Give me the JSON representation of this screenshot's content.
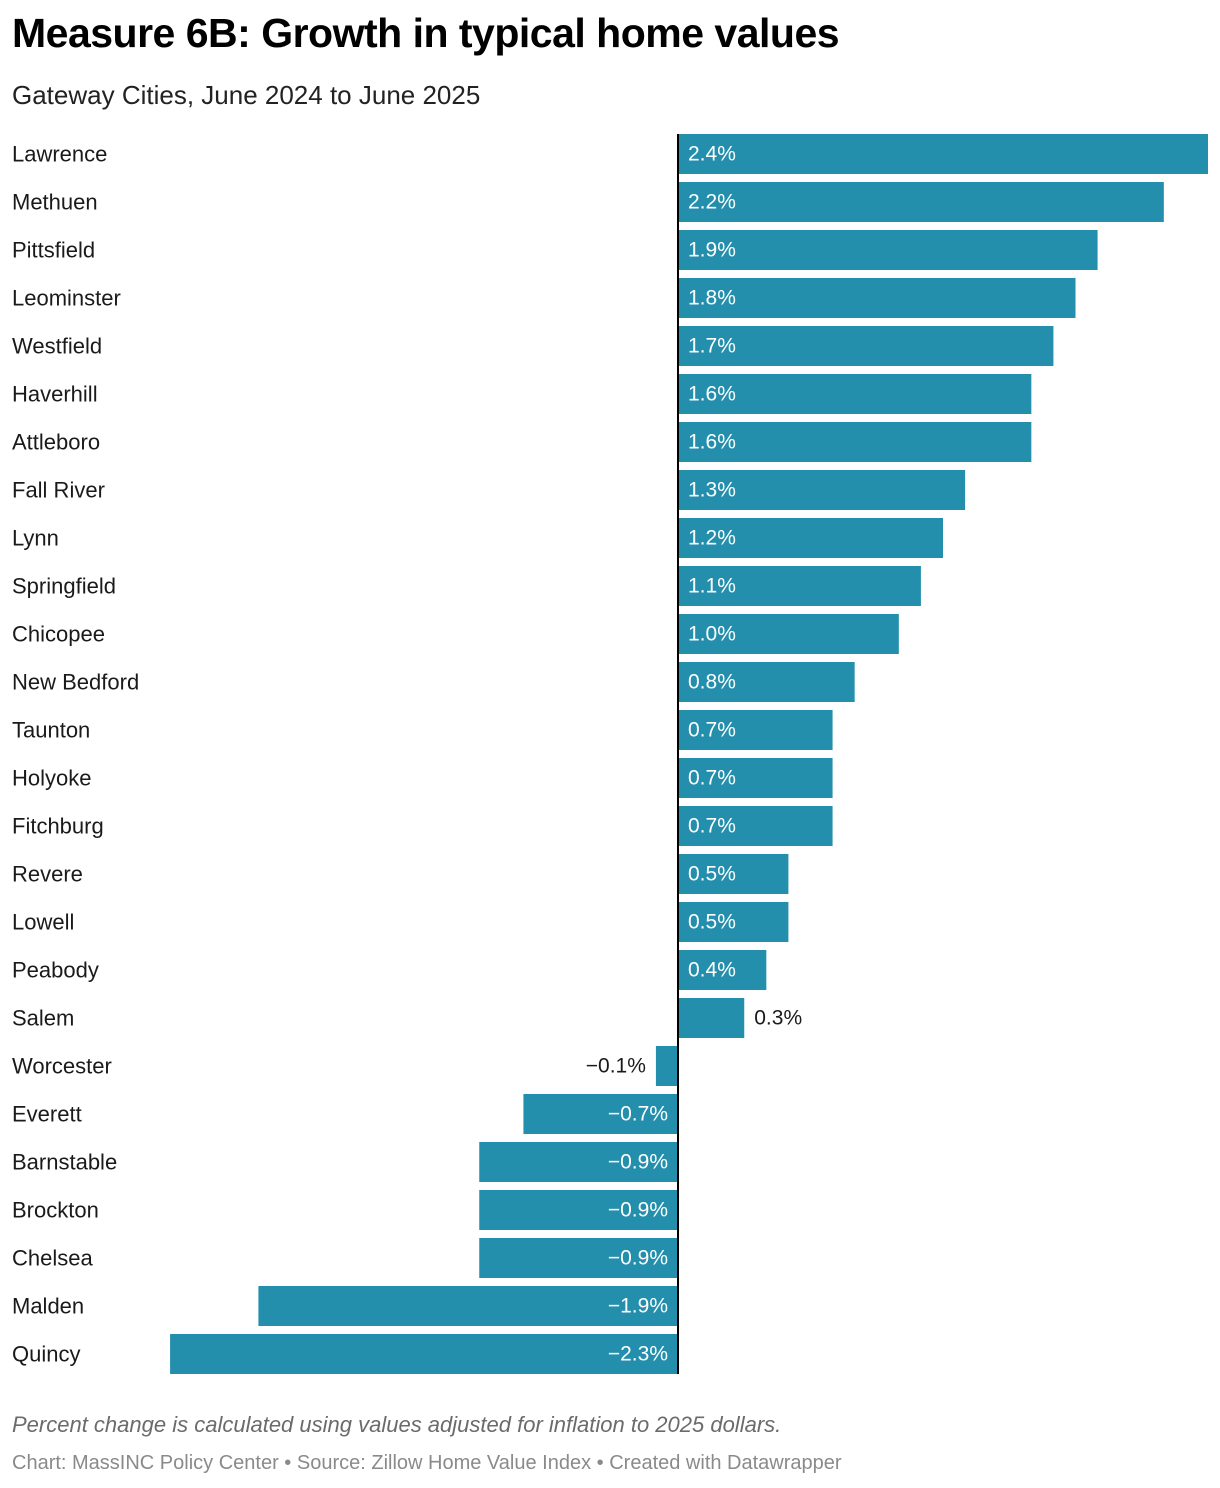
{
  "title": "Measure 6B: Growth in typical home values",
  "subtitle": "Gateway Cities, June 2024 to June 2025",
  "note": "Percent change is calculated using values adjusted for inflation to 2025 dollars.",
  "credits": {
    "chart": "Chart: MassINC Policy Center",
    "separator": " • ",
    "source": "Source: Zillow Home Value Index",
    "created": "Created with Datawrapper"
  },
  "colors": {
    "bar": "#238fac",
    "label_inside": "#ffffff",
    "label_outside": "#1a1a1a",
    "axis": "#000000"
  },
  "chart_data": {
    "type": "bar",
    "orientation": "horizontal",
    "value_suffix": "%",
    "categories": [
      "Lawrence",
      "Methuen",
      "Pittsfield",
      "Leominster",
      "Westfield",
      "Haverhill",
      "Attleboro",
      "Fall River",
      "Lynn",
      "Springfield",
      "Chicopee",
      "New Bedford",
      "Taunton",
      "Holyoke",
      "Fitchburg",
      "Revere",
      "Lowell",
      "Peabody",
      "Salem",
      "Worcester",
      "Everett",
      "Barnstable",
      "Brockton",
      "Chelsea",
      "Malden",
      "Quincy"
    ],
    "values": [
      2.4,
      2.2,
      1.9,
      1.8,
      1.7,
      1.6,
      1.6,
      1.3,
      1.2,
      1.1,
      1.0,
      0.8,
      0.7,
      0.7,
      0.7,
      0.5,
      0.5,
      0.4,
      0.3,
      -0.1,
      -0.7,
      -0.9,
      -0.9,
      -0.9,
      -1.9,
      -2.3
    ],
    "labels": [
      "2.4%",
      "2.2%",
      "1.9%",
      "1.8%",
      "1.7%",
      "1.6%",
      "1.6%",
      "1.3%",
      "1.2%",
      "1.1%",
      "1.0%",
      "0.8%",
      "0.7%",
      "0.7%",
      "0.7%",
      "0.5%",
      "0.5%",
      "0.4%",
      "0.3%",
      "−0.1%",
      "−0.7%",
      "−0.9%",
      "−0.9%",
      "−0.9%",
      "−1.9%",
      "−2.3%"
    ],
    "xlim": [
      -2.3,
      2.4
    ],
    "grid": false,
    "legend": "none"
  }
}
